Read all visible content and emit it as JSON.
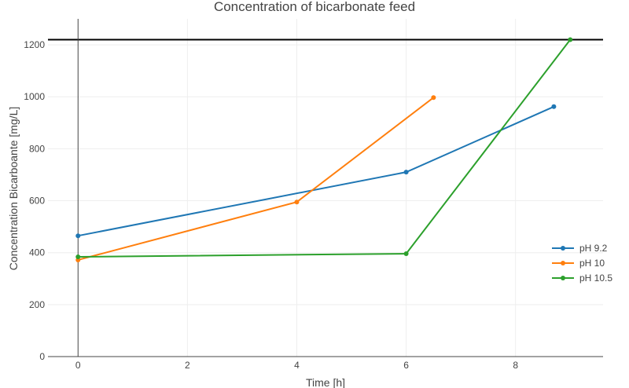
{
  "chart_data": {
    "type": "line",
    "title": "Concentration of bicarbonate feed",
    "xlabel": "Time [h]",
    "ylabel": "Concentration Bicarboante [mg/L]",
    "xlim": [
      -0.55,
      9.6
    ],
    "ylim": [
      0,
      1300
    ],
    "x_ticks": [
      0,
      2,
      4,
      6,
      8
    ],
    "y_ticks": [
      0,
      200,
      400,
      600,
      800,
      1000,
      1200
    ],
    "grid": true,
    "legend_position": "right",
    "reference_line": {
      "y": 1220,
      "color": "#000000"
    },
    "series": [
      {
        "name": "pH 9.2",
        "color": "#1f77b4",
        "x": [
          0,
          6,
          8.7
        ],
        "y": [
          465,
          710,
          962
        ]
      },
      {
        "name": "pH 10",
        "color": "#ff7f0e",
        "x": [
          0,
          4,
          6.5
        ],
        "y": [
          372,
          595,
          997
        ]
      },
      {
        "name": "pH 10.5",
        "color": "#2ca02c",
        "x": [
          0,
          6,
          9
        ],
        "y": [
          384,
          396,
          1220
        ]
      }
    ]
  }
}
